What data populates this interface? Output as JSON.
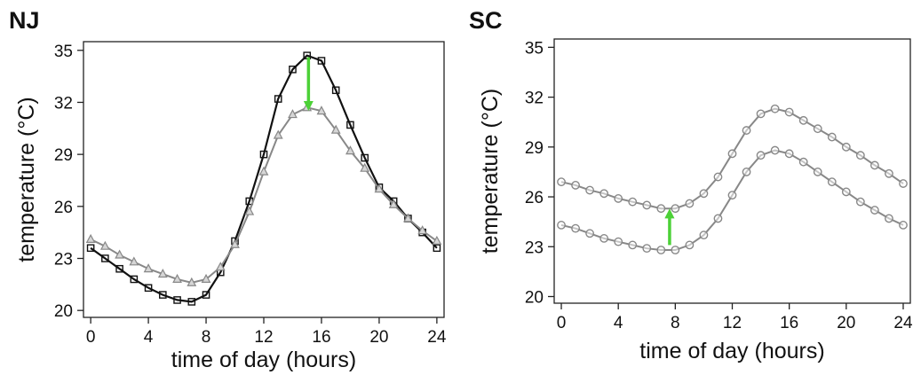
{
  "chart_data": [
    {
      "type": "line",
      "title": "NJ",
      "xlabel": "time of day (hours)",
      "ylabel": "temperature (°C)",
      "xlim": [
        -0.5,
        24.5
      ],
      "ylim": [
        19.6,
        35.5
      ],
      "xticks": [
        "0",
        "4",
        "8",
        "12",
        "16",
        "20",
        "24"
      ],
      "yticks": [
        "20",
        "23",
        "26",
        "29",
        "32",
        "35"
      ],
      "grid": false,
      "annotation": {
        "type": "arrow",
        "direction": "down",
        "x": 15.1,
        "from": 34.6,
        "to": 31.8,
        "color": "#4cd137"
      },
      "series": [
        {
          "marker": "square",
          "color": "#111111",
          "x": [
            0,
            1,
            2,
            3,
            4,
            5,
            6,
            7,
            8,
            9,
            10,
            11,
            12,
            13,
            14,
            15,
            16,
            17,
            18,
            19,
            20,
            21,
            22,
            23,
            24
          ],
          "values": [
            23.6,
            23.0,
            22.4,
            21.8,
            21.3,
            20.9,
            20.6,
            20.5,
            20.9,
            22.2,
            24.0,
            26.3,
            29.0,
            32.2,
            33.9,
            34.7,
            34.4,
            32.7,
            30.7,
            28.8,
            27.1,
            26.3,
            25.3,
            24.5,
            23.6
          ]
        },
        {
          "marker": "triangle",
          "color": "#888888",
          "x": [
            0,
            1,
            2,
            3,
            4,
            5,
            6,
            7,
            8,
            9,
            10,
            11,
            12,
            13,
            14,
            15,
            16,
            17,
            18,
            19,
            20,
            21,
            22,
            23,
            24
          ],
          "values": [
            24.1,
            23.7,
            23.2,
            22.8,
            22.4,
            22.1,
            21.8,
            21.6,
            21.8,
            22.5,
            23.8,
            25.7,
            28.0,
            30.1,
            31.3,
            31.7,
            31.5,
            30.4,
            29.2,
            28.2,
            27.0,
            26.1,
            25.3,
            24.6,
            24.0
          ]
        }
      ]
    },
    {
      "type": "line",
      "title": "SC",
      "xlabel": "time of day (hours)",
      "ylabel": "temperature (°C)",
      "xlim": [
        -0.5,
        24.5
      ],
      "ylim": [
        19.6,
        35.5
      ],
      "xticks": [
        "0",
        "4",
        "8",
        "12",
        "16",
        "20",
        "24"
      ],
      "yticks": [
        "20",
        "23",
        "26",
        "29",
        "32",
        "35"
      ],
      "grid": false,
      "annotation": {
        "type": "arrow",
        "direction": "up",
        "x": 7.6,
        "from": 23.1,
        "to": 25.0,
        "color": "#4cd137"
      },
      "series": [
        {
          "marker": "circle",
          "color": "#888888",
          "x": [
            0,
            1,
            2,
            3,
            4,
            5,
            6,
            7,
            8,
            9,
            10,
            11,
            12,
            13,
            14,
            15,
            16,
            17,
            18,
            19,
            20,
            21,
            22,
            23,
            24
          ],
          "values": [
            26.9,
            26.7,
            26.4,
            26.2,
            25.9,
            25.7,
            25.5,
            25.3,
            25.3,
            25.6,
            26.2,
            27.2,
            28.6,
            30.0,
            31.0,
            31.3,
            31.1,
            30.6,
            30.1,
            29.6,
            29.0,
            28.5,
            27.9,
            27.4,
            26.8
          ]
        },
        {
          "marker": "circle",
          "color": "#888888",
          "x": [
            0,
            1,
            2,
            3,
            4,
            5,
            6,
            7,
            8,
            9,
            10,
            11,
            12,
            13,
            14,
            15,
            16,
            17,
            18,
            19,
            20,
            21,
            22,
            23,
            24
          ],
          "values": [
            24.3,
            24.1,
            23.8,
            23.5,
            23.3,
            23.1,
            22.9,
            22.8,
            22.8,
            23.1,
            23.7,
            24.7,
            26.1,
            27.5,
            28.5,
            28.8,
            28.6,
            28.1,
            27.5,
            26.9,
            26.3,
            25.7,
            25.2,
            24.7,
            24.3
          ]
        }
      ]
    }
  ]
}
